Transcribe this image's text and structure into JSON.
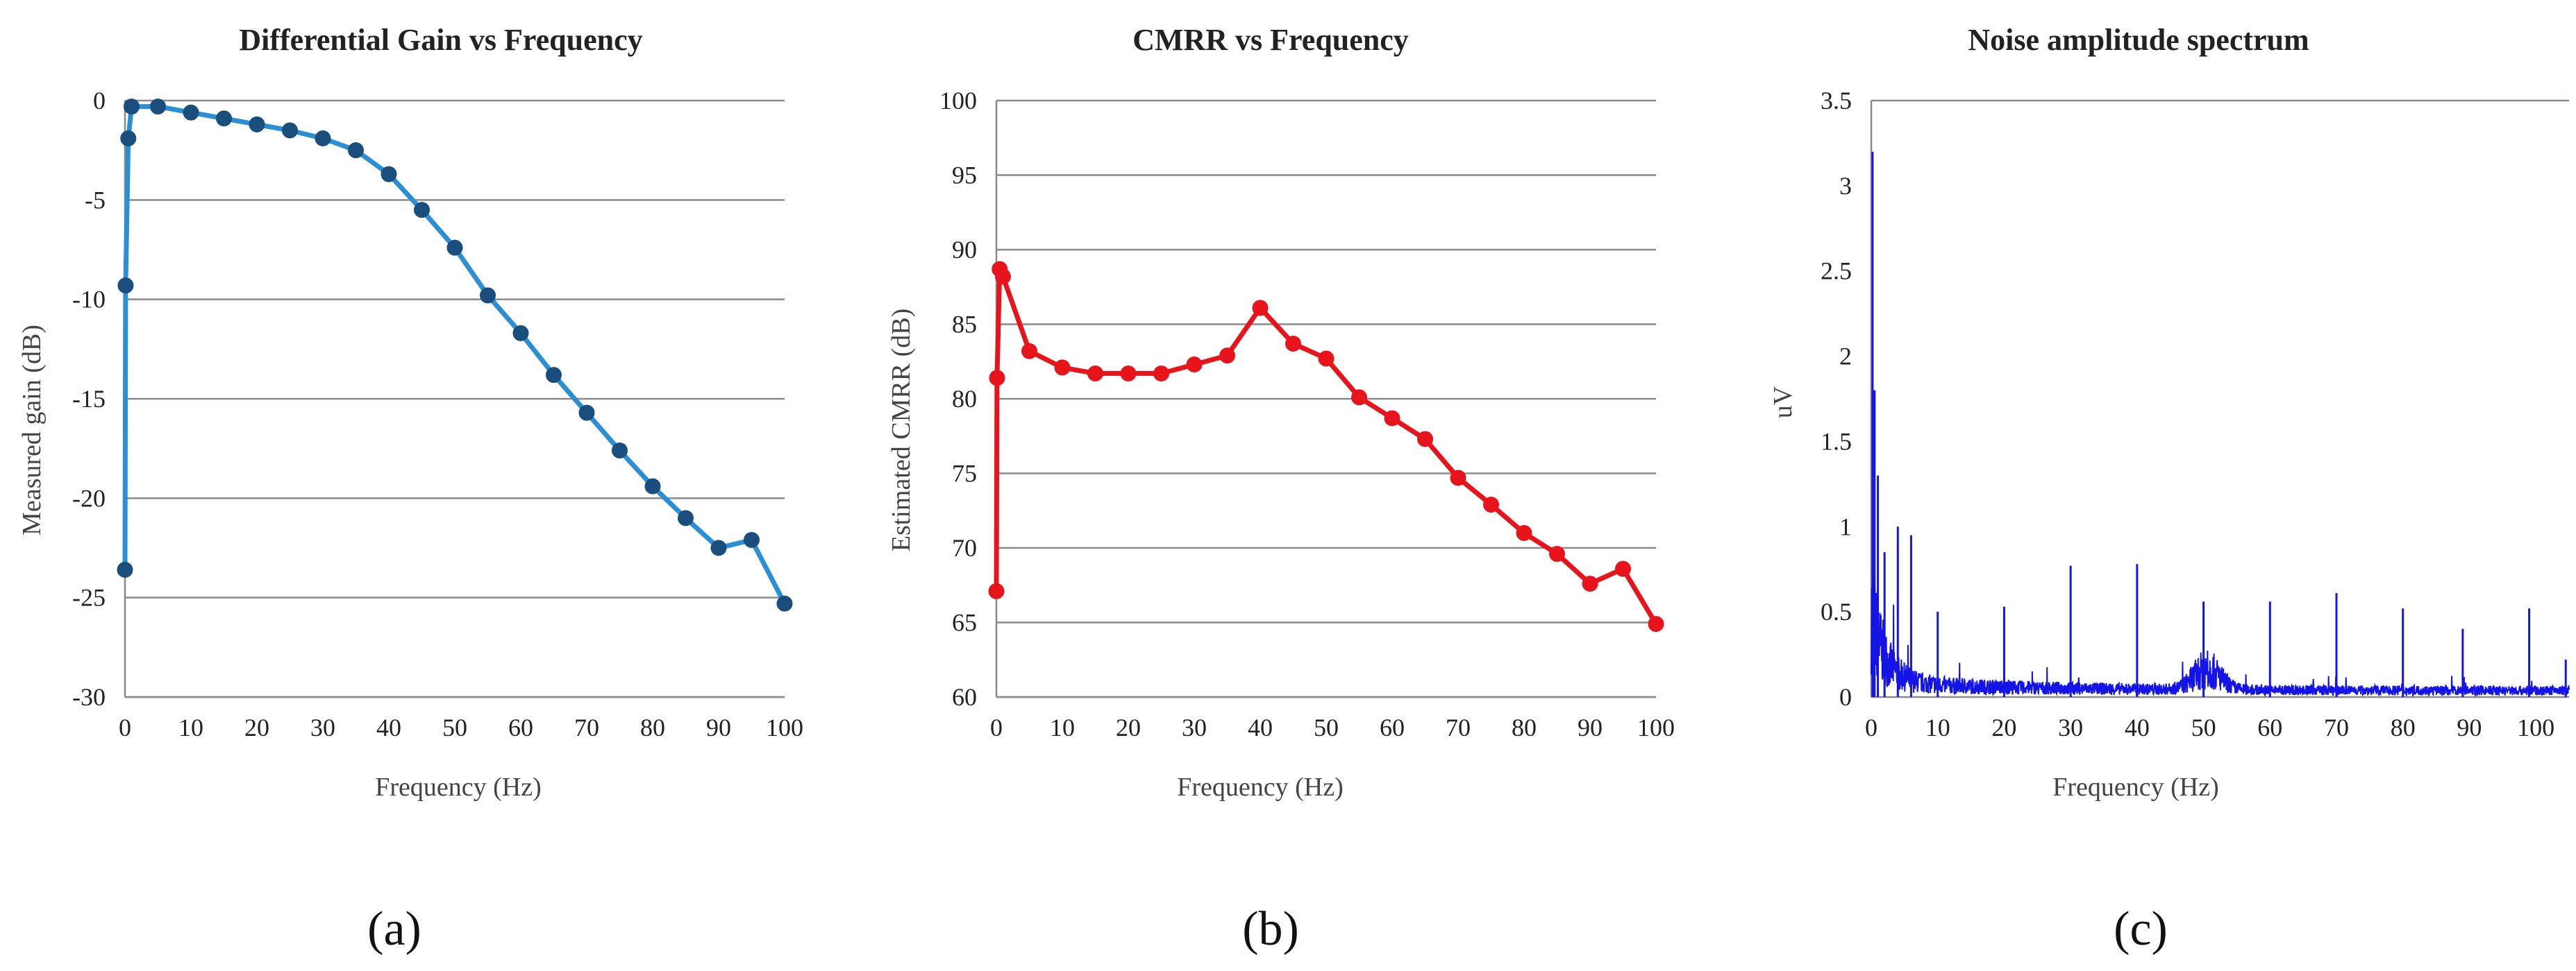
{
  "chart_data": [
    {
      "id": "a",
      "type": "line",
      "title": "Differential Gain vs Frequency",
      "xlabel": "Frequency (Hz)",
      "ylabel": "Measured gain (dB)",
      "xlim": [
        0,
        100
      ],
      "ylim": [
        -30,
        0
      ],
      "xticks": [
        0,
        10,
        20,
        30,
        40,
        50,
        60,
        70,
        80,
        90,
        100
      ],
      "yticks": [
        0,
        -5,
        -10,
        -15,
        -20,
        -25,
        -30
      ],
      "grid": "horizontal",
      "color": "#2b8fd6",
      "marker_color": "#1a4f7d",
      "series": [
        {
          "name": "Measured gain",
          "x": [
            0,
            0.1,
            0.5,
            1,
            5,
            10,
            15,
            20,
            25,
            30,
            35,
            40,
            45,
            50,
            55,
            60,
            65,
            70,
            75,
            80,
            85,
            90,
            95,
            100
          ],
          "y": [
            -23.6,
            -9.3,
            -1.9,
            -0.3,
            -0.3,
            -0.6,
            -0.9,
            -1.2,
            -1.5,
            -1.9,
            -2.5,
            -3.7,
            -5.5,
            -7.4,
            -9.8,
            -11.7,
            -13.8,
            -15.7,
            -17.6,
            -19.4,
            -21.0,
            -22.5,
            -22.1,
            -25.3
          ]
        }
      ],
      "panel_label": "(a)"
    },
    {
      "id": "b",
      "type": "line",
      "title": "CMRR vs Frequency",
      "xlabel": "Frequency (Hz)",
      "ylabel": "Estimated CMRR (dB)",
      "xlim": [
        0,
        100
      ],
      "ylim": [
        60,
        100
      ],
      "xticks": [
        0,
        10,
        20,
        30,
        40,
        50,
        60,
        70,
        80,
        90,
        100
      ],
      "yticks": [
        100,
        95,
        90,
        85,
        80,
        75,
        70,
        65,
        60
      ],
      "grid": "horizontal",
      "color": "#e8141b",
      "marker_color": "#e8141b",
      "series": [
        {
          "name": "Estimated CMRR",
          "x": [
            0,
            0.1,
            0.5,
            1,
            5,
            10,
            15,
            20,
            25,
            30,
            35,
            40,
            45,
            50,
            55,
            60,
            65,
            70,
            75,
            80,
            85,
            90,
            95,
            100
          ],
          "y": [
            67.1,
            81.4,
            88.7,
            88.2,
            83.2,
            82.1,
            81.7,
            81.7,
            81.7,
            82.3,
            82.9,
            86.1,
            83.7,
            82.7,
            80.1,
            78.7,
            77.3,
            74.7,
            72.9,
            71.0,
            69.6,
            67.6,
            68.6,
            64.9
          ]
        }
      ],
      "panel_label": "(b)"
    },
    {
      "id": "c",
      "type": "line",
      "title": "Noise amplitude spectrum",
      "xlabel": "Frequency (Hz)",
      "ylabel": "uV",
      "xlim": [
        0,
        105
      ],
      "ylim": [
        0,
        3.5
      ],
      "xticks": [
        0,
        10,
        20,
        30,
        40,
        50,
        60,
        70,
        80,
        90,
        100
      ],
      "yticks": [
        3.5,
        3,
        2.5,
        2,
        1.5,
        1,
        0.5,
        0
      ],
      "grid": "top-line",
      "color": "#1414e6",
      "series": [
        {
          "name": "Noise amplitude",
          "peaks": [
            {
              "x": 0.2,
              "y": 3.2
            },
            {
              "x": 0.5,
              "y": 1.8
            },
            {
              "x": 1,
              "y": 1.3
            },
            {
              "x": 2,
              "y": 0.85
            },
            {
              "x": 4,
              "y": 1.0
            },
            {
              "x": 6,
              "y": 0.95
            },
            {
              "x": 10,
              "y": 0.5
            },
            {
              "x": 20,
              "y": 0.53
            },
            {
              "x": 30,
              "y": 0.77
            },
            {
              "x": 40,
              "y": 0.78
            },
            {
              "x": 50,
              "y": 0.56
            },
            {
              "x": 60,
              "y": 0.56
            },
            {
              "x": 70,
              "y": 0.61
            },
            {
              "x": 80,
              "y": 0.52
            },
            {
              "x": 89,
              "y": 0.4
            },
            {
              "x": 99,
              "y": 0.52
            },
            {
              "x": 104.5,
              "y": 0.22
            }
          ],
          "hump": {
            "center": 50.5,
            "height": 0.16
          }
        }
      ],
      "panel_label": "(c)"
    }
  ]
}
